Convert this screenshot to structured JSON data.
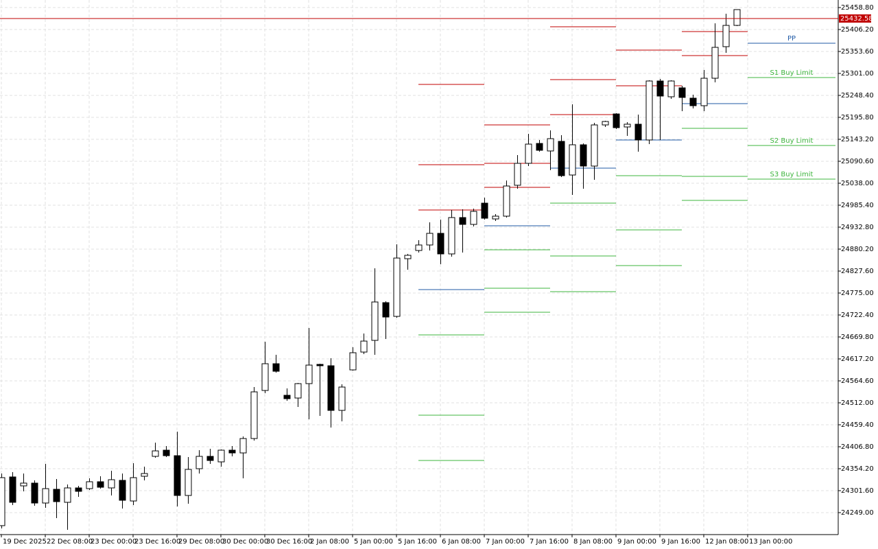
{
  "chart_data": {
    "type": "candlestick",
    "x": [
      "19 Dec 2025",
      null,
      null,
      null,
      "22 Dec 08:00",
      null,
      null,
      null,
      "23 Dec 00:00",
      null,
      null,
      null,
      "23 Dec 16:00",
      null,
      null,
      null,
      "29 Dec 08:00",
      null,
      null,
      null,
      "30 Dec 00:00",
      null,
      null,
      null,
      "30 Dec 16:00",
      null,
      null,
      null,
      "2 Jan 08:00",
      null,
      null,
      null,
      "5 Jan 00:00",
      null,
      null,
      null,
      "5 Jan 16:00",
      null,
      null,
      null,
      "6 Jan 08:00",
      null,
      null,
      null,
      "7 Jan 00:00",
      null,
      null,
      null,
      "7 Jan 16:00",
      null,
      null,
      null,
      "8 Jan 08:00",
      null,
      null,
      null,
      "9 Jan 00:00",
      null,
      null,
      null,
      "9 Jan 16:00",
      null,
      null,
      null,
      "12 Jan 08:00",
      null,
      null,
      null,
      "13 Jan 00:00"
    ],
    "open": [
      24217.8,
      24334.5,
      24313.1,
      24319.7,
      24272.0,
      24304.9,
      24273.7,
      24308.2,
      24306.5,
      24323.0,
      24308.2,
      24326.3,
      24276.9,
      24336.1,
      24383.8,
      24398.6,
      24385.4,
      24290.1,
      24354.2,
      24383.8,
      24370.6,
      24398.6,
      24392.0,
      24426.5,
      24541.6,
      24605.7,
      24530.1,
      24523.5,
      24558.0,
      24604.1,
      24600.8,
      24493.9,
      24590.9,
      24633.6,
      24661.6,
      24752.0,
      24719.1,
      24857.2,
      24876.9,
      24890.1,
      24918.0,
      24868.7,
      24955.8,
      24939.4,
      24990.3,
      24952.5,
      24959.1,
      25033.1,
      25085.7,
      25133.3,
      25115.3,
      25138.3,
      25057.7,
      25130.1,
      25079.1,
      25177.7,
      25204.0,
      25172.8,
      25179.4,
      25141.6,
      25282.9,
      25245.1,
      25266.5,
      25241.8,
      25223.7,
      25289.5,
      25365.1,
      25416.1,
      null
    ],
    "high": [
      24342.7,
      24346.0,
      24342.7,
      24326.3,
      24365.7,
      24329.5,
      24316.4,
      24313.1,
      24331.2,
      24336.1,
      24349.3,
      24342.7,
      24367.4,
      24359.1,
      24416.7,
      24408.4,
      24443.0,
      24382.1,
      24398.6,
      24401.9,
      24400.2,
      24408.4,
      24431.5,
      24549.8,
      24658.3,
      24627.1,
      24546.5,
      24559.7,
      24691.2,
      24605.7,
      24618.8,
      24556.4,
      24645.1,
      24678.0,
      24834.2,
      24755.3,
      24891.7,
      24868.7,
      24901.6,
      24944.3,
      24950.9,
      24973.9,
      24975.5,
      24977.2,
      25003.5,
      24964.0,
      25044.6,
      25105.4,
      25156.4,
      25141.6,
      25164.6,
      25153.1,
      25227.0,
      25133.3,
      25182.6,
      25187.6,
      25205.7,
      25184.3,
      25202.4,
      25284.6,
      25287.9,
      25284.6,
      25271.4,
      25250.0,
      25309.2,
      25421.0,
      25444.0,
      25453.9,
      null
    ],
    "low": [
      24211.2,
      24267.1,
      24300.0,
      24265.4,
      24260.5,
      24235.9,
      24207.9,
      24286.8,
      24303.2,
      24306.5,
      24290.1,
      24258.9,
      24267.1,
      24326.3,
      24380.5,
      24382.1,
      24263.8,
      24270.4,
      24342.7,
      24365.7,
      24359.1,
      24383.8,
      24331.2,
      24421.6,
      24535.0,
      24584.3,
      24516.9,
      24502.1,
      24472.6,
      24480.8,
      24452.8,
      24467.6,
      24589.3,
      24628.7,
      24627.1,
      24664.9,
      24715.8,
      24830.9,
      24872.0,
      24876.9,
      24844.0,
      24862.1,
      24872.0,
      24934.4,
      24950.9,
      24947.6,
      24955.8,
      25024.9,
      25079.1,
      25113.6,
      25069.2,
      25052.8,
      25010.1,
      25024.9,
      25046.2,
      25172.8,
      25167.9,
      25151.4,
      25113.6,
      25131.7,
      25141.6,
      25240.2,
      25210.6,
      25217.2,
      25210.6,
      25279.6,
      25350.3,
      25414.4,
      null
    ],
    "close": [
      24332.8,
      24273.7,
      24319.7,
      24272.0,
      24306.5,
      24275.3,
      24308.2,
      24300.0,
      24323.0,
      24309.8,
      24327.9,
      24278.6,
      24332.8,
      24342.7,
      24396.9,
      24385.4,
      24290.1,
      24352.6,
      24383.8,
      24373.9,
      24398.6,
      24392.0,
      24426.5,
      24538.3,
      24605.7,
      24587.6,
      24521.9,
      24558.0,
      24602.4,
      24600.8,
      24493.9,
      24549.8,
      24632.0,
      24659.9,
      24753.6,
      24717.5,
      24858.8,
      24865.4,
      24890.1,
      24918.0,
      24868.7,
      24955.8,
      24939.4,
      24970.6,
      24954.2,
      24959.1,
      25031.4,
      25085.7,
      25131.7,
      25116.9,
      25144.8,
      25056.1,
      25130.1,
      25079.1,
      25177.7,
      25185.9,
      25171.1,
      25179.4,
      25141.6,
      25282.9,
      25246.8,
      25282.9,
      25243.5,
      25223.7,
      25289.5,
      25363.5,
      25416.1,
      25453.9,
      null
    ],
    "up_color": "#ffffff",
    "down_color": "#000000",
    "ylim": [
      24196.4,
      25476.9
    ],
    "yticks": [
      {
        "value": 24249,
        "label": "24249.00"
      },
      {
        "value": 24301.6,
        "label": "24301.60"
      },
      {
        "value": 24354.2,
        "label": "24354.20"
      },
      {
        "value": 24406.8,
        "label": "24406.80"
      },
      {
        "value": 24459.4,
        "label": "24459.40"
      },
      {
        "value": 24512,
        "label": "24512.00"
      },
      {
        "value": 24564.6,
        "label": "24564.60"
      },
      {
        "value": 24617.2,
        "label": "24617.20"
      },
      {
        "value": 24669.8,
        "label": "24669.80"
      },
      {
        "value": 24722.4,
        "label": "24722.40"
      },
      {
        "value": 24775,
        "label": "24775.00"
      },
      {
        "value": 24827.6,
        "label": "24827.60"
      },
      {
        "value": 24880.2,
        "label": "24880.20"
      },
      {
        "value": 24932.8,
        "label": "24932.80"
      },
      {
        "value": 24985.4,
        "label": "24985.40"
      },
      {
        "value": 25038,
        "label": "25038.00"
      },
      {
        "value": 25090.6,
        "label": "25090.60"
      },
      {
        "value": 25143.2,
        "label": "25143.20"
      },
      {
        "value": 25195.8,
        "label": "25195.80"
      },
      {
        "value": 25248.4,
        "label": "25248.40"
      },
      {
        "value": 25301,
        "label": "25301.00"
      },
      {
        "value": 25353.6,
        "label": "25353.60"
      },
      {
        "value": 25406.2,
        "label": "25406.20"
      },
      {
        "value": 25458.8,
        "label": "25458.80"
      }
    ],
    "grid": true,
    "current_price": 25432.58,
    "current_price_color": "#c00000",
    "pivot_colors": {
      "resistance": "#c00000",
      "pivot": "#1f5aa6",
      "support": "#3cb43c"
    },
    "pivot_days": [
      [
        25274.7,
        25082.4,
        24973.9,
        24783.2,
        24674.7,
        24482.4,
        24373.9
      ],
      [
        25177.7,
        25085.7,
        25028.1,
        24936.1,
        24878.6,
        24786.5,
        24729.0
      ],
      [
        25412.8,
        25286.2,
        25202.4,
        25074.2,
        24990.3,
        24863.8,
        24778.3
      ],
      [
        null,
        25356.9,
        25271.4,
        25141.6,
        25056.1,
        24926.2,
        24840.8
      ],
      [
        null,
        25401.3,
        25343.7,
        25228.7,
        25169.5,
        25054.4,
        24996.9
      ]
    ],
    "projection": [
      {
        "label": "PP",
        "value": 25373.3,
        "color": "#1f5aa6"
      },
      {
        "label": "S1 Buy Limit",
        "value": 25291.1,
        "color": "#3cb43c"
      },
      {
        "label": "S2 Buy Limit",
        "value": 25128.4,
        "color": "#3cb43c"
      },
      {
        "label": "S3 Buy Limit",
        "value": 25047.9,
        "color": "#3cb43c"
      }
    ]
  }
}
